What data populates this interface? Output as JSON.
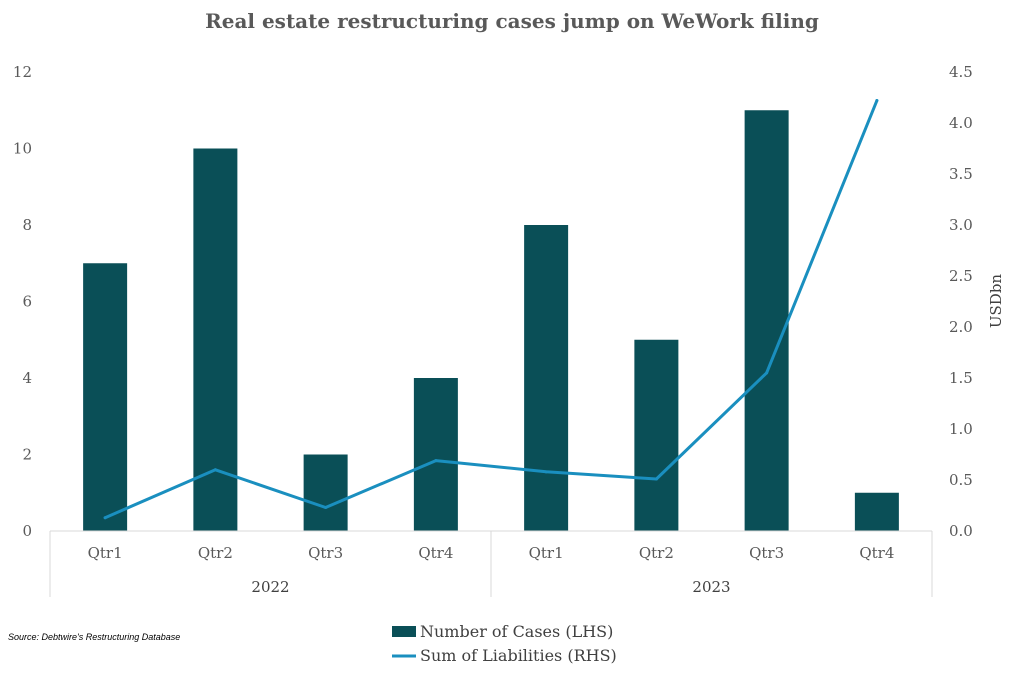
{
  "chart_data": {
    "type": "bar",
    "title": "Real estate restructuring cases jump on WeWork filing",
    "categories": [
      "Qtr1",
      "Qtr2",
      "Qtr3",
      "Qtr4",
      "Qtr1",
      "Qtr2",
      "Qtr3",
      "Qtr4"
    ],
    "category_groups": [
      {
        "label": "2022",
        "count": 4
      },
      {
        "label": "2023",
        "count": 4
      }
    ],
    "series": [
      {
        "name": "Number of Cases (LHS)",
        "type": "bar",
        "axis": "left",
        "color": "#0a4f57",
        "values": [
          7,
          10,
          2,
          4,
          8,
          5,
          11,
          1
        ]
      },
      {
        "name": "Sum of Liabilities (RHS)",
        "type": "line",
        "axis": "right",
        "color": "#1a8fbf",
        "values": [
          0.13,
          0.6,
          0.23,
          0.69,
          0.58,
          0.51,
          1.55,
          4.22
        ]
      }
    ],
    "y_left": {
      "label": "",
      "ylim": [
        0,
        12
      ],
      "ticks": [
        "0",
        "2",
        "4",
        "6",
        "8",
        "10",
        "12"
      ],
      "tick_values": [
        0,
        2,
        4,
        6,
        8,
        10,
        12
      ]
    },
    "y_right": {
      "label": "USDbn",
      "ylim": [
        0,
        4.5
      ],
      "ticks": [
        "0.0",
        "0.5",
        "1.0",
        "1.5",
        "2.0",
        "2.5",
        "3.0",
        "3.5",
        "4.0",
        "4.5"
      ],
      "tick_values": [
        0,
        0.5,
        1.0,
        1.5,
        2.0,
        2.5,
        3.0,
        3.5,
        4.0,
        4.5
      ]
    },
    "grid": false,
    "legend_position": "bottom",
    "source": "Source: Debtwire's Restructuring Database"
  }
}
